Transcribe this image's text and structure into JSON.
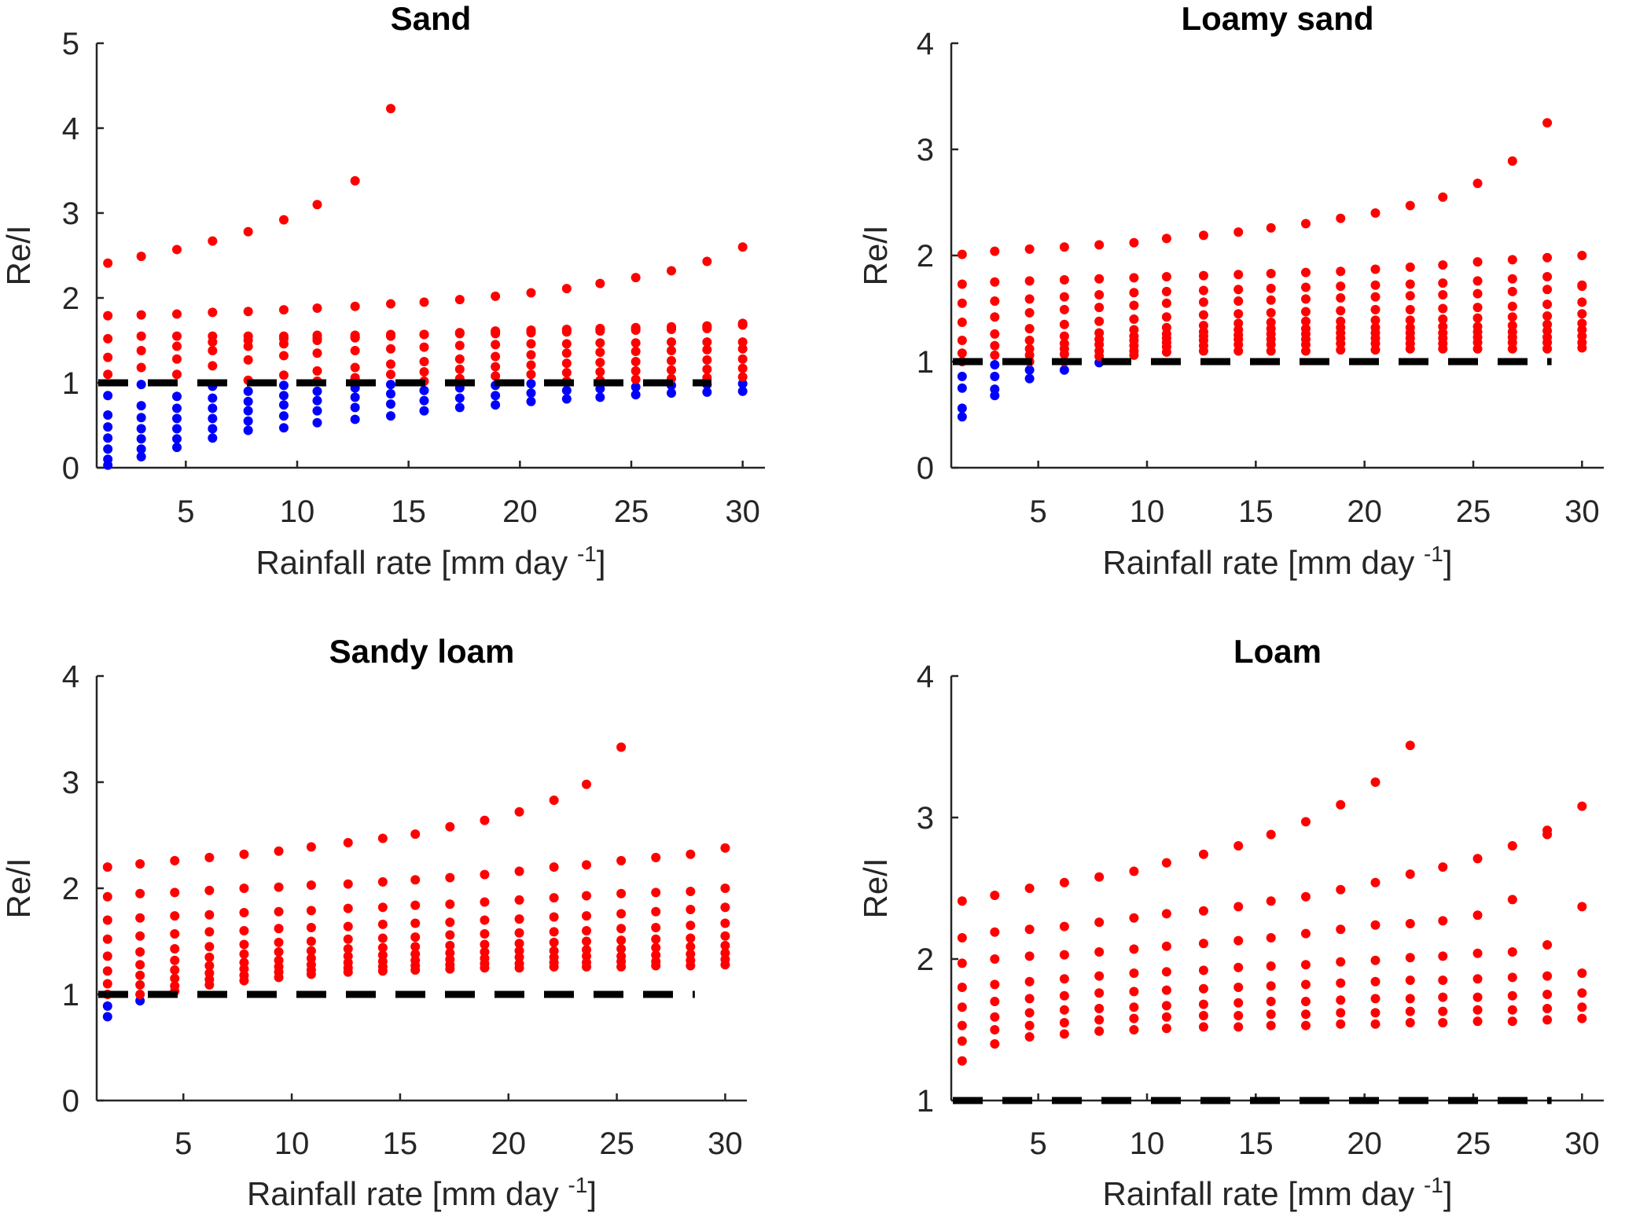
{
  "colors": {
    "above": "#ff0000",
    "below": "#0000ff",
    "reference": "#000000",
    "axis": "#262626"
  },
  "chart_data": [
    {
      "type": "scatter",
      "title": "Sand",
      "xlabel": "Rainfall rate [mm day",
      "xlabel_sup": "-1",
      "xlabel_close": "]",
      "ylabel": "Re/I",
      "xlim": [
        1,
        31
      ],
      "ylim": [
        0,
        5
      ],
      "xticks": [
        5,
        10,
        15,
        20,
        25,
        30
      ],
      "yticks": [
        0,
        1,
        2,
        3,
        4,
        5
      ],
      "reference_line_y": 1,
      "x": [
        1.5,
        3.0,
        4.6,
        6.2,
        7.8,
        9.4,
        10.9,
        12.6,
        14.2,
        15.7,
        17.3,
        18.9,
        20.5,
        22.1,
        23.6,
        25.2,
        26.8,
        28.4,
        30.0
      ],
      "series": [
        {
          "values": [
            0.03,
            0.13,
            0.24,
            0.35,
            0.44,
            0.47,
            0.53,
            0.57,
            0.61,
            0.67,
            0.71,
            0.74,
            0.78,
            0.81,
            0.83,
            0.86,
            0.88,
            0.89,
            0.9
          ]
        },
        {
          "values": [
            0.1,
            0.22,
            0.34,
            0.46,
            0.55,
            0.61,
            0.67,
            0.71,
            0.75,
            0.79,
            0.82,
            0.85,
            0.88,
            0.91,
            0.93,
            0.95,
            0.97,
            0.98,
            0.99
          ]
        },
        {
          "values": [
            0.22,
            0.34,
            0.46,
            0.58,
            0.67,
            0.74,
            0.79,
            0.83,
            0.87,
            0.91,
            0.94,
            0.97,
            0.99,
            1.02,
            1.03,
            1.04,
            1.05,
            1.06,
            1.07
          ]
        },
        {
          "values": [
            0.35,
            0.46,
            0.58,
            0.7,
            0.78,
            0.85,
            0.9,
            0.94,
            0.98,
            1.02,
            1.05,
            1.08,
            1.1,
            1.12,
            1.13,
            1.14,
            1.15,
            1.16,
            1.17
          ]
        },
        {
          "values": [
            0.48,
            0.59,
            0.7,
            0.82,
            0.9,
            0.97,
            1.02,
            1.06,
            1.1,
            1.13,
            1.16,
            1.19,
            1.21,
            1.23,
            1.24,
            1.25,
            1.26,
            1.27,
            1.28
          ]
        },
        {
          "values": [
            0.62,
            0.73,
            0.84,
            0.96,
            1.03,
            1.09,
            1.14,
            1.18,
            1.22,
            1.25,
            1.28,
            1.31,
            1.33,
            1.35,
            1.36,
            1.37,
            1.38,
            1.39,
            1.4
          ]
        },
        {
          "values": [
            0.85,
            0.98,
            1.1,
            1.2,
            1.27,
            1.32,
            1.35,
            1.38,
            1.4,
            1.42,
            1.44,
            1.45,
            1.46,
            1.46,
            1.47,
            1.47,
            1.48,
            1.48,
            1.48
          ]
        },
        {
          "values": [
            1.1,
            1.18,
            1.28,
            1.38,
            1.43,
            1.46,
            1.5,
            1.53,
            1.55,
            1.57,
            1.59,
            1.61,
            1.62,
            1.63,
            1.64,
            1.65,
            1.66,
            1.67,
            1.68
          ]
        },
        {
          "values": [
            1.3,
            1.38,
            1.43,
            1.48,
            1.5,
            1.52,
            1.53,
            1.54,
            1.56,
            1.57,
            1.59,
            1.6,
            1.61,
            1.62,
            1.63,
            1.64,
            1.65,
            1.66,
            1.69
          ]
        },
        {
          "values": [
            1.52,
            1.55,
            1.55,
            1.55,
            1.55,
            1.55,
            1.56,
            1.56,
            1.57,
            1.57,
            1.58,
            1.58,
            1.59,
            1.6,
            1.61,
            1.62,
            1.63,
            1.64,
            1.7
          ]
        },
        {
          "values": [
            1.79,
            1.8,
            1.81,
            1.83,
            1.84,
            1.86,
            1.88,
            1.9,
            1.93,
            1.95,
            1.98,
            2.02,
            2.06,
            2.11,
            2.17,
            2.24,
            2.32,
            2.43,
            2.6
          ]
        },
        {
          "values": [
            2.41,
            2.49,
            2.57,
            2.67,
            2.78,
            2.92,
            3.1,
            3.38,
            4.23
          ]
        }
      ]
    },
    {
      "type": "scatter",
      "title": "Loamy sand",
      "xlabel": "Rainfall rate [mm day",
      "xlabel_sup": "-1",
      "xlabel_close": "]",
      "ylabel": "Re/I",
      "xlim": [
        1,
        31
      ],
      "ylim": [
        0,
        4
      ],
      "xticks": [
        5,
        10,
        15,
        20,
        25,
        30
      ],
      "yticks": [
        0,
        1,
        2,
        3,
        4
      ],
      "reference_line_y": 1,
      "x": [
        1.5,
        3.0,
        4.6,
        6.2,
        7.8,
        9.4,
        10.9,
        12.6,
        14.2,
        15.7,
        17.3,
        18.9,
        20.5,
        22.1,
        23.6,
        25.2,
        26.8,
        28.4,
        30.0
      ],
      "series": [
        {
          "values": [
            0.48,
            0.68,
            0.84,
            0.92,
            0.99,
            1.06,
            1.09,
            1.1,
            1.1,
            1.1,
            1.1,
            1.11,
            1.11,
            1.12,
            1.12,
            1.12,
            1.12,
            1.12,
            1.13
          ]
        },
        {
          "values": [
            0.56,
            0.74,
            0.92,
            1.0,
            1.05,
            1.1,
            1.14,
            1.15,
            1.16,
            1.16,
            1.16,
            1.17,
            1.17,
            1.17,
            1.17,
            1.18,
            1.18,
            1.18,
            1.18
          ]
        },
        {
          "values": [
            0.75,
            0.86,
            1.0,
            1.07,
            1.1,
            1.15,
            1.18,
            1.2,
            1.21,
            1.21,
            1.21,
            1.22,
            1.22,
            1.22,
            1.22,
            1.23,
            1.23,
            1.23,
            1.24
          ]
        },
        {
          "values": [
            0.86,
            0.97,
            1.06,
            1.12,
            1.16,
            1.2,
            1.22,
            1.24,
            1.25,
            1.26,
            1.26,
            1.27,
            1.27,
            1.27,
            1.27,
            1.28,
            1.28,
            1.29,
            1.3
          ]
        },
        {
          "values": [
            1.0,
            1.06,
            1.12,
            1.17,
            1.21,
            1.24,
            1.26,
            1.28,
            1.3,
            1.31,
            1.31,
            1.32,
            1.32,
            1.32,
            1.33,
            1.33,
            1.34,
            1.35,
            1.36
          ]
        },
        {
          "values": [
            1.08,
            1.15,
            1.2,
            1.24,
            1.27,
            1.3,
            1.32,
            1.34,
            1.36,
            1.37,
            1.38,
            1.38,
            1.39,
            1.39,
            1.4,
            1.41,
            1.42,
            1.43,
            1.45
          ]
        },
        {
          "values": [
            1.2,
            1.26,
            1.31,
            1.35,
            1.38,
            1.4,
            1.42,
            1.44,
            1.45,
            1.46,
            1.47,
            1.48,
            1.49,
            1.49,
            1.5,
            1.51,
            1.52,
            1.54,
            1.56
          ]
        },
        {
          "values": [
            1.37,
            1.42,
            1.46,
            1.49,
            1.51,
            1.53,
            1.55,
            1.56,
            1.57,
            1.58,
            1.59,
            1.6,
            1.61,
            1.62,
            1.63,
            1.64,
            1.66,
            1.68,
            1.71
          ]
        },
        {
          "values": [
            1.55,
            1.57,
            1.59,
            1.61,
            1.63,
            1.65,
            1.66,
            1.67,
            1.68,
            1.69,
            1.7,
            1.71,
            1.72,
            1.73,
            1.74,
            1.76,
            1.78,
            1.8,
            1.72
          ]
        },
        {
          "values": [
            1.73,
            1.75,
            1.76,
            1.77,
            1.78,
            1.79,
            1.8,
            1.81,
            1.82,
            1.83,
            1.84,
            1.85,
            1.87,
            1.89,
            1.91,
            1.94,
            1.96,
            1.98,
            2.0
          ]
        },
        {
          "values": [
            2.01,
            2.04,
            2.06,
            2.08,
            2.1,
            2.12,
            2.16,
            2.19,
            2.22,
            2.26,
            2.3,
            2.35,
            2.4,
            2.47,
            2.55,
            2.68,
            2.89,
            3.25
          ]
        }
      ]
    },
    {
      "type": "scatter",
      "title": "Sandy loam",
      "xlabel": "Rainfall rate [mm day",
      "xlabel_sup": "-1",
      "xlabel_close": "]",
      "ylabel": "Re/I",
      "xlim": [
        1,
        31
      ],
      "ylim": [
        0,
        4
      ],
      "xticks": [
        5,
        10,
        15,
        20,
        25,
        30
      ],
      "yticks": [
        0,
        1,
        2,
        3,
        4
      ],
      "reference_line_y": 1,
      "x": [
        1.5,
        3.0,
        4.6,
        6.2,
        7.8,
        9.4,
        10.9,
        12.6,
        14.2,
        15.7,
        17.3,
        18.9,
        20.5,
        22.1,
        23.6,
        25.2,
        26.8,
        28.4,
        30.0
      ],
      "series": [
        {
          "values": [
            0.79,
            0.94,
            1.03,
            1.09,
            1.13,
            1.16,
            1.19,
            1.21,
            1.22,
            1.23,
            1.24,
            1.25,
            1.25,
            1.26,
            1.26,
            1.26,
            1.27,
            1.27,
            1.28
          ]
        },
        {
          "values": [
            0.89,
            1.0,
            1.08,
            1.14,
            1.18,
            1.21,
            1.23,
            1.25,
            1.26,
            1.27,
            1.28,
            1.29,
            1.29,
            1.3,
            1.3,
            1.31,
            1.31,
            1.32,
            1.33
          ]
        },
        {
          "values": [
            1.0,
            1.09,
            1.15,
            1.2,
            1.24,
            1.26,
            1.28,
            1.3,
            1.31,
            1.32,
            1.33,
            1.34,
            1.35,
            1.35,
            1.36,
            1.36,
            1.37,
            1.38,
            1.39
          ]
        },
        {
          "values": [
            1.1,
            1.18,
            1.23,
            1.27,
            1.3,
            1.32,
            1.34,
            1.36,
            1.37,
            1.38,
            1.39,
            1.4,
            1.41,
            1.41,
            1.42,
            1.43,
            1.44,
            1.45,
            1.46
          ]
        },
        {
          "values": [
            1.22,
            1.28,
            1.32,
            1.35,
            1.38,
            1.4,
            1.41,
            1.43,
            1.44,
            1.45,
            1.46,
            1.47,
            1.48,
            1.49,
            1.5,
            1.51,
            1.52,
            1.53,
            1.55
          ]
        },
        {
          "values": [
            1.36,
            1.4,
            1.43,
            1.45,
            1.47,
            1.49,
            1.5,
            1.52,
            1.53,
            1.54,
            1.56,
            1.57,
            1.58,
            1.59,
            1.6,
            1.62,
            1.63,
            1.65,
            1.67
          ]
        },
        {
          "values": [
            1.52,
            1.55,
            1.57,
            1.59,
            1.6,
            1.62,
            1.63,
            1.64,
            1.66,
            1.67,
            1.68,
            1.7,
            1.71,
            1.73,
            1.74,
            1.76,
            1.78,
            1.8,
            1.82
          ]
        },
        {
          "values": [
            1.7,
            1.72,
            1.74,
            1.75,
            1.77,
            1.78,
            1.79,
            1.81,
            1.82,
            1.84,
            1.85,
            1.87,
            1.89,
            1.91,
            1.93,
            1.95,
            1.96,
            1.97,
            2.0
          ]
        },
        {
          "values": [
            1.92,
            1.95,
            1.96,
            1.98,
            2.0,
            2.01,
            2.03,
            2.04,
            2.06,
            2.08,
            2.1,
            2.13,
            2.16,
            2.2,
            2.22,
            2.26,
            2.29,
            2.32,
            2.38
          ]
        },
        {
          "values": [
            2.2,
            2.23,
            2.26,
            2.29,
            2.32,
            2.35,
            2.39,
            2.43,
            2.47,
            2.51,
            2.58,
            2.64,
            2.72,
            2.83,
            2.98,
            3.33
          ]
        }
      ]
    },
    {
      "type": "scatter",
      "title": "Loam",
      "xlabel": "Rainfall rate [mm day",
      "xlabel_sup": "-1",
      "xlabel_close": "]",
      "ylabel": "Re/I",
      "xlim": [
        1,
        31
      ],
      "ylim": [
        1,
        4
      ],
      "xticks": [
        5,
        10,
        15,
        20,
        25,
        30
      ],
      "yticks": [
        1,
        2,
        3,
        4
      ],
      "reference_line_y": 1,
      "x": [
        1.5,
        3.0,
        4.6,
        6.2,
        7.8,
        9.4,
        10.9,
        12.6,
        14.2,
        15.7,
        17.3,
        18.9,
        20.5,
        22.1,
        23.6,
        25.2,
        26.8,
        28.4,
        30.0
      ],
      "series": [
        {
          "values": [
            1.28,
            1.4,
            1.45,
            1.47,
            1.49,
            1.5,
            1.51,
            1.52,
            1.52,
            1.53,
            1.53,
            1.54,
            1.54,
            1.55,
            1.55,
            1.56,
            1.56,
            1.57,
            1.58
          ]
        },
        {
          "values": [
            1.42,
            1.5,
            1.53,
            1.55,
            1.57,
            1.58,
            1.59,
            1.6,
            1.6,
            1.61,
            1.61,
            1.62,
            1.62,
            1.63,
            1.63,
            1.64,
            1.64,
            1.65,
            1.66
          ]
        },
        {
          "values": [
            1.53,
            1.59,
            1.62,
            1.64,
            1.65,
            1.66,
            1.67,
            1.68,
            1.69,
            1.7,
            1.7,
            1.71,
            1.72,
            1.72,
            1.73,
            1.73,
            1.74,
            1.75,
            1.76
          ]
        },
        {
          "values": [
            1.66,
            1.7,
            1.72,
            1.74,
            1.76,
            1.77,
            1.78,
            1.79,
            1.8,
            1.81,
            1.82,
            1.83,
            1.84,
            1.85,
            1.85,
            1.86,
            1.87,
            1.88,
            1.9
          ]
        },
        {
          "values": [
            1.8,
            1.82,
            1.84,
            1.86,
            1.88,
            1.9,
            1.91,
            1.92,
            1.94,
            1.95,
            1.96,
            1.98,
            1.99,
            2.01,
            2.02,
            2.04,
            2.05,
            2.1,
            2.37
          ]
        },
        {
          "values": [
            1.97,
            2.0,
            2.02,
            2.03,
            2.05,
            2.07,
            2.09,
            2.11,
            2.13,
            2.15,
            2.18,
            2.21,
            2.24,
            2.25,
            2.27,
            2.31,
            2.42,
            2.88
          ]
        },
        {
          "values": [
            2.15,
            2.19,
            2.21,
            2.23,
            2.26,
            2.29,
            2.32,
            2.34,
            2.37,
            2.41,
            2.44,
            2.49,
            2.54,
            2.6,
            2.65,
            2.71,
            2.8,
            2.91,
            3.08
          ]
        },
        {
          "values": [
            2.41,
            2.45,
            2.5,
            2.54,
            2.58,
            2.62,
            2.68,
            2.74,
            2.8,
            2.88,
            2.97,
            3.09,
            3.25,
            3.51
          ]
        }
      ]
    }
  ]
}
